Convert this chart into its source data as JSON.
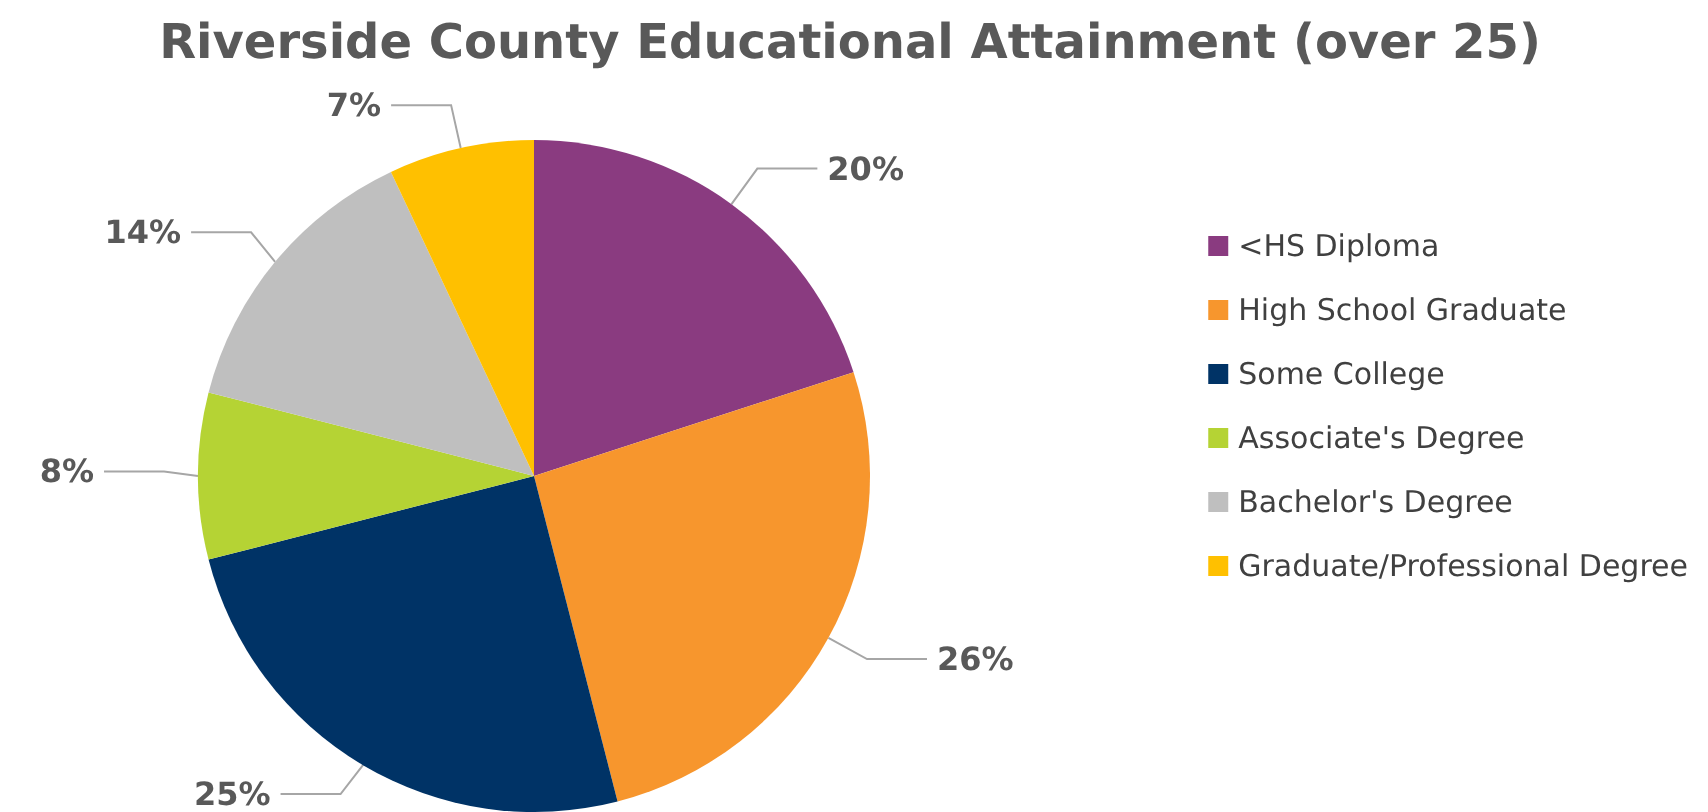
{
  "chart_data": {
    "type": "pie",
    "title": "Riverside County Educational Attainment (over 25)",
    "categories": [
      "<HS Diploma",
      "High School Graduate",
      "Some College",
      "Associate's Degree",
      "Bachelor's Degree",
      "Graduate/Professional Degree"
    ],
    "values": [
      20,
      26,
      25,
      8,
      14,
      7
    ],
    "colors": [
      "#8a3b80",
      "#f7962d",
      "#003366",
      "#b5d334",
      "#bfbfbf",
      "#ffc000"
    ],
    "value_labels": [
      "20%",
      "26%",
      "25%",
      "8%",
      "14%",
      "7%"
    ],
    "legend": "right"
  }
}
